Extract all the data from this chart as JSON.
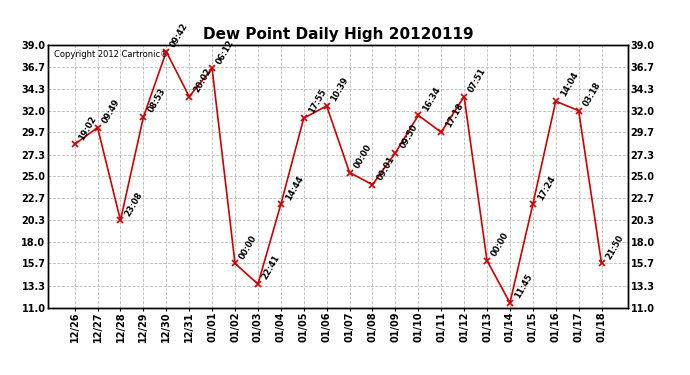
{
  "title": "Dew Point Daily High 20120119",
  "copyright": "Copyright 2012 Cartronic®",
  "dates": [
    "12/26",
    "12/27",
    "12/28",
    "12/29",
    "12/30",
    "12/31",
    "01/01",
    "01/02",
    "01/03",
    "01/04",
    "01/05",
    "01/06",
    "01/07",
    "01/08",
    "01/09",
    "01/10",
    "01/11",
    "01/12",
    "01/13",
    "01/14",
    "01/15",
    "01/16",
    "01/17",
    "01/18"
  ],
  "values": [
    28.4,
    30.2,
    20.3,
    31.3,
    38.3,
    33.5,
    36.5,
    15.7,
    13.5,
    22.0,
    31.2,
    32.5,
    25.4,
    24.1,
    27.5,
    31.5,
    29.7,
    33.5,
    16.0,
    11.5,
    22.0,
    33.0,
    32.0,
    15.7
  ],
  "labels": [
    "19:02",
    "09:49",
    "23:08",
    "08:53",
    "09:42",
    "20:02",
    "06:12",
    "00:00",
    "22:41",
    "14:44",
    "17:55",
    "10:39",
    "00:00",
    "09:01",
    "09:50",
    "16:34",
    "17:18",
    "07:51",
    "00:00",
    "11:45",
    "17:24",
    "14:04",
    "03:18",
    "21:50"
  ],
  "ylim": [
    11.0,
    39.0
  ],
  "yticks": [
    11.0,
    13.3,
    15.7,
    18.0,
    20.3,
    22.7,
    25.0,
    27.3,
    29.7,
    32.0,
    34.3,
    36.7,
    39.0
  ],
  "line_color": "#cc0000",
  "marker_color": "#cc0000",
  "bg_color": "#ffffff",
  "grid_color": "#bbbbbb",
  "title_fontsize": 11,
  "tick_fontsize": 7,
  "annotation_fontsize": 6,
  "copyright_fontsize": 6
}
